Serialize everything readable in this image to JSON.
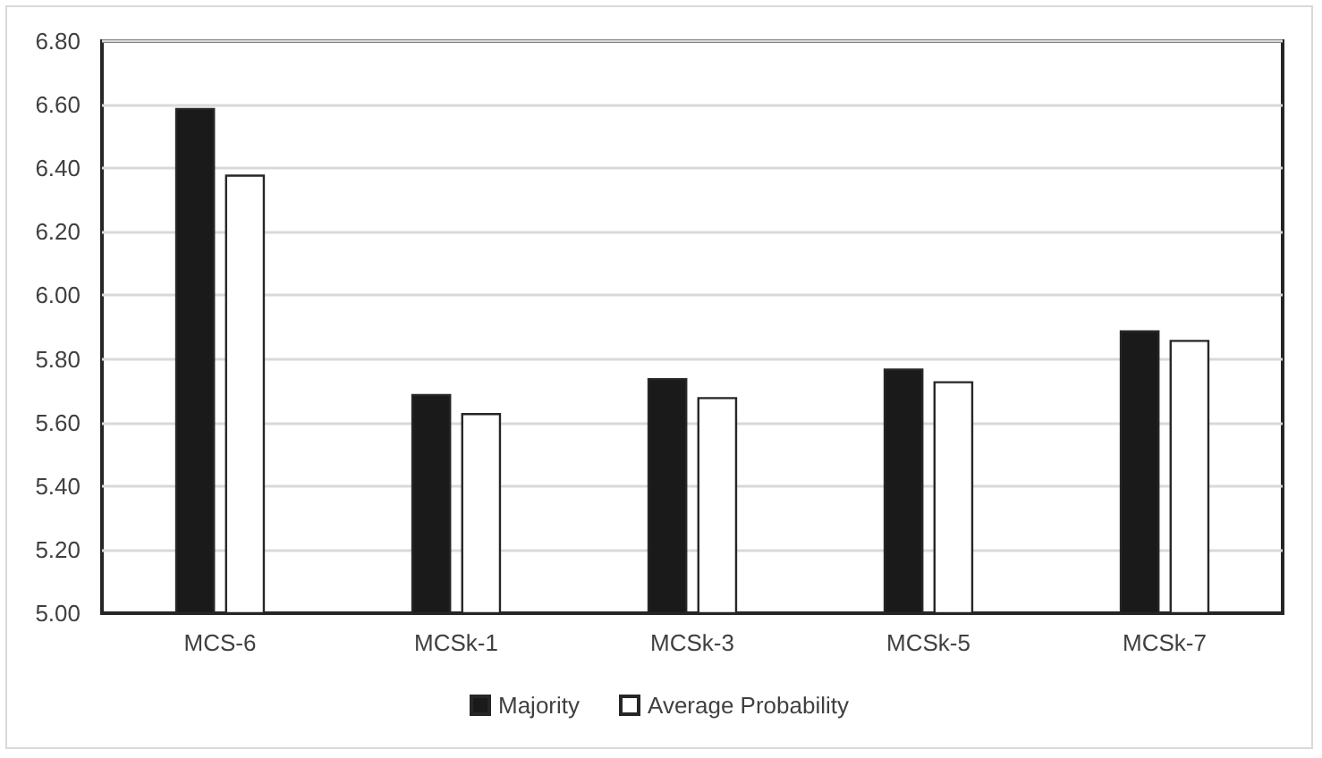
{
  "chart_data": {
    "type": "bar",
    "categories": [
      "MCS-6",
      "MCSk-1",
      "MCSk-3",
      "MCSk-5",
      "MCSk-7"
    ],
    "series": [
      {
        "name": "Majority",
        "color": "#1a1a1a",
        "values": [
          6.59,
          5.69,
          5.74,
          5.77,
          5.89
        ]
      },
      {
        "name": "Average Probability",
        "color": "#ffffff",
        "values": [
          6.38,
          5.63,
          5.68,
          5.73,
          5.86
        ]
      }
    ],
    "ylim": [
      5.0,
      6.8
    ],
    "yticks": [
      {
        "value": 5.0,
        "label": "5.00"
      },
      {
        "value": 5.2,
        "label": "5.20"
      },
      {
        "value": 5.4,
        "label": "5.40"
      },
      {
        "value": 5.6,
        "label": "5.60"
      },
      {
        "value": 5.8,
        "label": "5.80"
      },
      {
        "value": 6.0,
        "label": "6.00"
      },
      {
        "value": 6.2,
        "label": "6.20"
      },
      {
        "value": 6.4,
        "label": "6.40"
      },
      {
        "value": 6.6,
        "label": "6.60"
      },
      {
        "value": 6.8,
        "label": "6.80"
      }
    ],
    "grid": "y",
    "legend": "bottom"
  }
}
